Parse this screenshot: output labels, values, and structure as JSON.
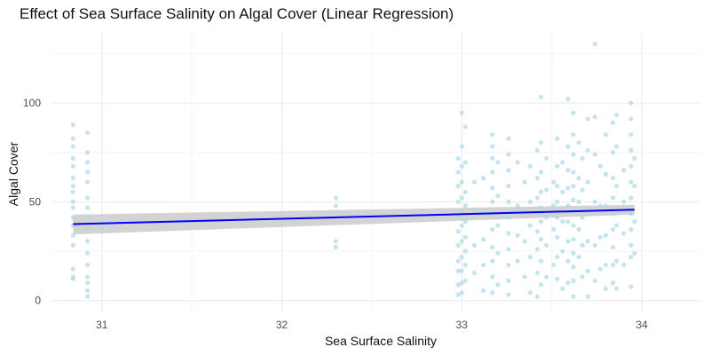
{
  "chart_data": {
    "type": "scatter",
    "title": "Effect of Sea Surface Salinity on Algal Cover (Linear Regression)",
    "xlabel": "Sea Surface Salinity",
    "ylabel": "Algal Cover",
    "xlim": [
      30.72,
      34.33
    ],
    "ylim": [
      -6,
      136
    ],
    "x_ticks": [
      31,
      32,
      33,
      34
    ],
    "y_ticks": [
      0,
      50,
      100
    ],
    "grid": true,
    "legend": "none",
    "colors": {
      "points": "#add8e6",
      "regression_line": "#0000ff",
      "confidence_band": "#c8c8c8",
      "grid": "#ebebeb"
    },
    "regression": {
      "x": [
        30.84,
        33.96
      ],
      "y": [
        38.7,
        46.0
      ],
      "ci_lower": [
        33.5,
        43.5
      ],
      "ci_upper": [
        43.5,
        48.5
      ]
    },
    "points": [
      {
        "x": 30.84,
        "y": 89
      },
      {
        "x": 30.84,
        "y": 82
      },
      {
        "x": 30.84,
        "y": 78
      },
      {
        "x": 30.84,
        "y": 72
      },
      {
        "x": 30.84,
        "y": 68
      },
      {
        "x": 30.84,
        "y": 62
      },
      {
        "x": 30.84,
        "y": 58
      },
      {
        "x": 30.84,
        "y": 55
      },
      {
        "x": 30.84,
        "y": 50
      },
      {
        "x": 30.84,
        "y": 47
      },
      {
        "x": 30.84,
        "y": 42
      },
      {
        "x": 30.84,
        "y": 38
      },
      {
        "x": 30.84,
        "y": 33
      },
      {
        "x": 30.84,
        "y": 28
      },
      {
        "x": 30.84,
        "y": 16
      },
      {
        "x": 30.84,
        "y": 12
      },
      {
        "x": 30.84,
        "y": 11
      },
      {
        "x": 30.92,
        "y": 85
      },
      {
        "x": 30.92,
        "y": 75
      },
      {
        "x": 30.92,
        "y": 70
      },
      {
        "x": 30.92,
        "y": 65
      },
      {
        "x": 30.92,
        "y": 60
      },
      {
        "x": 30.92,
        "y": 52
      },
      {
        "x": 30.92,
        "y": 47
      },
      {
        "x": 30.92,
        "y": 42
      },
      {
        "x": 30.92,
        "y": 36
      },
      {
        "x": 30.92,
        "y": 30
      },
      {
        "x": 30.92,
        "y": 24
      },
      {
        "x": 30.92,
        "y": 18
      },
      {
        "x": 30.92,
        "y": 12
      },
      {
        "x": 30.92,
        "y": 9
      },
      {
        "x": 30.92,
        "y": 5
      },
      {
        "x": 30.92,
        "y": 2
      },
      {
        "x": 32.3,
        "y": 52
      },
      {
        "x": 32.3,
        "y": 48
      },
      {
        "x": 32.3,
        "y": 30
      },
      {
        "x": 32.3,
        "y": 27
      },
      {
        "x": 32.98,
        "y": 72
      },
      {
        "x": 32.98,
        "y": 65
      },
      {
        "x": 32.98,
        "y": 58
      },
      {
        "x": 32.98,
        "y": 50
      },
      {
        "x": 32.98,
        "y": 43
      },
      {
        "x": 32.98,
        "y": 35
      },
      {
        "x": 32.98,
        "y": 28
      },
      {
        "x": 32.98,
        "y": 20
      },
      {
        "x": 32.98,
        "y": 15
      },
      {
        "x": 32.98,
        "y": 8
      },
      {
        "x": 32.98,
        "y": 3
      },
      {
        "x": 33.0,
        "y": 95
      },
      {
        "x": 33.0,
        "y": 78
      },
      {
        "x": 33.0,
        "y": 68
      },
      {
        "x": 33.0,
        "y": 60
      },
      {
        "x": 33.0,
        "y": 52
      },
      {
        "x": 33.0,
        "y": 45
      },
      {
        "x": 33.0,
        "y": 38
      },
      {
        "x": 33.0,
        "y": 30
      },
      {
        "x": 33.0,
        "y": 22
      },
      {
        "x": 33.0,
        "y": 15
      },
      {
        "x": 33.0,
        "y": 9
      },
      {
        "x": 33.0,
        "y": 4
      },
      {
        "x": 33.02,
        "y": 88
      },
      {
        "x": 33.02,
        "y": 70
      },
      {
        "x": 33.02,
        "y": 55
      },
      {
        "x": 33.02,
        "y": 48
      },
      {
        "x": 33.02,
        "y": 40
      },
      {
        "x": 33.02,
        "y": 32
      },
      {
        "x": 33.02,
        "y": 25
      },
      {
        "x": 33.02,
        "y": 18
      },
      {
        "x": 33.02,
        "y": 10
      },
      {
        "x": 33.07,
        "y": 60
      },
      {
        "x": 33.07,
        "y": 46
      },
      {
        "x": 33.07,
        "y": 28
      },
      {
        "x": 33.07,
        "y": 14
      },
      {
        "x": 33.12,
        "y": 62
      },
      {
        "x": 33.12,
        "y": 44
      },
      {
        "x": 33.12,
        "y": 31
      },
      {
        "x": 33.12,
        "y": 18
      },
      {
        "x": 33.12,
        "y": 5
      },
      {
        "x": 33.17,
        "y": 84
      },
      {
        "x": 33.17,
        "y": 78
      },
      {
        "x": 33.17,
        "y": 72
      },
      {
        "x": 33.17,
        "y": 65
      },
      {
        "x": 33.17,
        "y": 57
      },
      {
        "x": 33.17,
        "y": 50
      },
      {
        "x": 33.17,
        "y": 44
      },
      {
        "x": 33.17,
        "y": 36
      },
      {
        "x": 33.17,
        "y": 27
      },
      {
        "x": 33.17,
        "y": 20
      },
      {
        "x": 33.17,
        "y": 12
      },
      {
        "x": 33.17,
        "y": 4
      },
      {
        "x": 33.2,
        "y": 70
      },
      {
        "x": 33.2,
        "y": 53
      },
      {
        "x": 33.2,
        "y": 38
      },
      {
        "x": 33.2,
        "y": 24
      },
      {
        "x": 33.2,
        "y": 8
      },
      {
        "x": 33.26,
        "y": 82
      },
      {
        "x": 33.26,
        "y": 74
      },
      {
        "x": 33.26,
        "y": 66
      },
      {
        "x": 33.26,
        "y": 58
      },
      {
        "x": 33.26,
        "y": 50
      },
      {
        "x": 33.26,
        "y": 42
      },
      {
        "x": 33.26,
        "y": 34
      },
      {
        "x": 33.26,
        "y": 26
      },
      {
        "x": 33.26,
        "y": 18
      },
      {
        "x": 33.26,
        "y": 10
      },
      {
        "x": 33.26,
        "y": 3
      },
      {
        "x": 33.31,
        "y": 70
      },
      {
        "x": 33.31,
        "y": 48
      },
      {
        "x": 33.31,
        "y": 33
      },
      {
        "x": 33.31,
        "y": 20
      },
      {
        "x": 33.35,
        "y": 60
      },
      {
        "x": 33.35,
        "y": 45
      },
      {
        "x": 33.35,
        "y": 30
      },
      {
        "x": 33.35,
        "y": 12
      },
      {
        "x": 33.38,
        "y": 68
      },
      {
        "x": 33.38,
        "y": 50
      },
      {
        "x": 33.38,
        "y": 38
      },
      {
        "x": 33.38,
        "y": 22
      },
      {
        "x": 33.38,
        "y": 4
      },
      {
        "x": 33.42,
        "y": 76
      },
      {
        "x": 33.42,
        "y": 62
      },
      {
        "x": 33.42,
        "y": 52
      },
      {
        "x": 33.42,
        "y": 44
      },
      {
        "x": 33.42,
        "y": 35
      },
      {
        "x": 33.42,
        "y": 26
      },
      {
        "x": 33.42,
        "y": 14
      },
      {
        "x": 33.42,
        "y": 2
      },
      {
        "x": 33.44,
        "y": 103
      },
      {
        "x": 33.44,
        "y": 80
      },
      {
        "x": 33.44,
        "y": 65
      },
      {
        "x": 33.44,
        "y": 55
      },
      {
        "x": 33.44,
        "y": 47
      },
      {
        "x": 33.44,
        "y": 40
      },
      {
        "x": 33.44,
        "y": 31
      },
      {
        "x": 33.44,
        "y": 20
      },
      {
        "x": 33.44,
        "y": 8
      },
      {
        "x": 33.47,
        "y": 72
      },
      {
        "x": 33.47,
        "y": 56
      },
      {
        "x": 33.47,
        "y": 42
      },
      {
        "x": 33.47,
        "y": 28
      },
      {
        "x": 33.47,
        "y": 12
      },
      {
        "x": 33.51,
        "y": 60
      },
      {
        "x": 33.51,
        "y": 48
      },
      {
        "x": 33.51,
        "y": 36
      },
      {
        "x": 33.51,
        "y": 18
      },
      {
        "x": 33.53,
        "y": 82
      },
      {
        "x": 33.53,
        "y": 68
      },
      {
        "x": 33.53,
        "y": 58
      },
      {
        "x": 33.53,
        "y": 50
      },
      {
        "x": 33.53,
        "y": 42
      },
      {
        "x": 33.53,
        "y": 32
      },
      {
        "x": 33.53,
        "y": 22
      },
      {
        "x": 33.53,
        "y": 11
      },
      {
        "x": 33.56,
        "y": 70
      },
      {
        "x": 33.56,
        "y": 55
      },
      {
        "x": 33.56,
        "y": 40
      },
      {
        "x": 33.56,
        "y": 25
      },
      {
        "x": 33.56,
        "y": 6
      },
      {
        "x": 33.59,
        "y": 102
      },
      {
        "x": 33.59,
        "y": 78
      },
      {
        "x": 33.59,
        "y": 66
      },
      {
        "x": 33.59,
        "y": 57
      },
      {
        "x": 33.59,
        "y": 48
      },
      {
        "x": 33.59,
        "y": 40
      },
      {
        "x": 33.59,
        "y": 30
      },
      {
        "x": 33.59,
        "y": 20
      },
      {
        "x": 33.59,
        "y": 9
      },
      {
        "x": 33.62,
        "y": 95
      },
      {
        "x": 33.62,
        "y": 84
      },
      {
        "x": 33.62,
        "y": 74
      },
      {
        "x": 33.62,
        "y": 65
      },
      {
        "x": 33.62,
        "y": 58
      },
      {
        "x": 33.62,
        "y": 51
      },
      {
        "x": 33.62,
        "y": 45
      },
      {
        "x": 33.62,
        "y": 38
      },
      {
        "x": 33.62,
        "y": 31
      },
      {
        "x": 33.62,
        "y": 24
      },
      {
        "x": 33.62,
        "y": 17
      },
      {
        "x": 33.62,
        "y": 10
      },
      {
        "x": 33.62,
        "y": 2
      },
      {
        "x": 33.65,
        "y": 80
      },
      {
        "x": 33.65,
        "y": 62
      },
      {
        "x": 33.65,
        "y": 50
      },
      {
        "x": 33.65,
        "y": 36
      },
      {
        "x": 33.65,
        "y": 22
      },
      {
        "x": 33.67,
        "y": 72
      },
      {
        "x": 33.67,
        "y": 56
      },
      {
        "x": 33.67,
        "y": 42
      },
      {
        "x": 33.67,
        "y": 28
      },
      {
        "x": 33.67,
        "y": 12
      },
      {
        "x": 33.7,
        "y": 92
      },
      {
        "x": 33.7,
        "y": 76
      },
      {
        "x": 33.7,
        "y": 60
      },
      {
        "x": 33.7,
        "y": 45
      },
      {
        "x": 33.7,
        "y": 30
      },
      {
        "x": 33.7,
        "y": 15
      },
      {
        "x": 33.7,
        "y": 2
      },
      {
        "x": 33.74,
        "y": 130
      },
      {
        "x": 33.74,
        "y": 93
      },
      {
        "x": 33.74,
        "y": 74
      },
      {
        "x": 33.74,
        "y": 50
      },
      {
        "x": 33.74,
        "y": 28
      },
      {
        "x": 33.74,
        "y": 10
      },
      {
        "x": 33.77,
        "y": 68
      },
      {
        "x": 33.77,
        "y": 48
      },
      {
        "x": 33.77,
        "y": 32
      },
      {
        "x": 33.77,
        "y": 16
      },
      {
        "x": 33.8,
        "y": 84
      },
      {
        "x": 33.8,
        "y": 64
      },
      {
        "x": 33.8,
        "y": 48
      },
      {
        "x": 33.8,
        "y": 33
      },
      {
        "x": 33.8,
        "y": 18
      },
      {
        "x": 33.8,
        "y": 6
      },
      {
        "x": 33.84,
        "y": 90
      },
      {
        "x": 33.84,
        "y": 75
      },
      {
        "x": 33.84,
        "y": 62
      },
      {
        "x": 33.84,
        "y": 52
      },
      {
        "x": 33.84,
        "y": 44
      },
      {
        "x": 33.84,
        "y": 36
      },
      {
        "x": 33.84,
        "y": 27
      },
      {
        "x": 33.84,
        "y": 18
      },
      {
        "x": 33.84,
        "y": 9
      },
      {
        "x": 33.86,
        "y": 94
      },
      {
        "x": 33.86,
        "y": 78
      },
      {
        "x": 33.86,
        "y": 58
      },
      {
        "x": 33.86,
        "y": 38
      },
      {
        "x": 33.86,
        "y": 20
      },
      {
        "x": 33.86,
        "y": 6
      },
      {
        "x": 33.9,
        "y": 66
      },
      {
        "x": 33.9,
        "y": 50
      },
      {
        "x": 33.9,
        "y": 34
      },
      {
        "x": 33.9,
        "y": 18
      },
      {
        "x": 33.94,
        "y": 100
      },
      {
        "x": 33.94,
        "y": 92
      },
      {
        "x": 33.94,
        "y": 84
      },
      {
        "x": 33.94,
        "y": 76
      },
      {
        "x": 33.94,
        "y": 68
      },
      {
        "x": 33.94,
        "y": 60
      },
      {
        "x": 33.94,
        "y": 52
      },
      {
        "x": 33.94,
        "y": 44
      },
      {
        "x": 33.94,
        "y": 36
      },
      {
        "x": 33.94,
        "y": 28
      },
      {
        "x": 33.94,
        "y": 22
      },
      {
        "x": 33.94,
        "y": 7
      },
      {
        "x": 33.96,
        "y": 72
      },
      {
        "x": 33.96,
        "y": 58
      },
      {
        "x": 33.96,
        "y": 40
      },
      {
        "x": 33.96,
        "y": 24
      }
    ]
  }
}
